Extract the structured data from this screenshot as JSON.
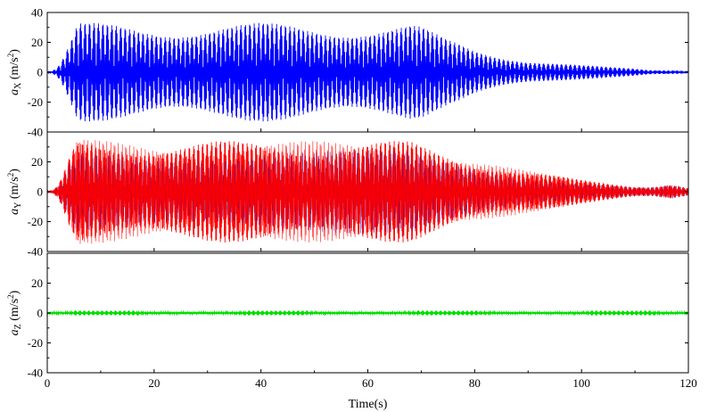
{
  "chart_data": {
    "type": "line",
    "layout": "stacked-panels",
    "shared_x": {
      "label": "Time(s)",
      "range": [
        0,
        120
      ],
      "ticks": [
        0,
        20,
        40,
        60,
        80,
        100,
        120
      ]
    },
    "panels": [
      {
        "id": "ax",
        "ylabel_symbol": "a",
        "ylabel_sub": "X",
        "ylabel_unit": " (m/s",
        "ylabel_exp": "2",
        "ylabel_close": ")",
        "ylim": [
          -40,
          40
        ],
        "yticks": [
          -40,
          -20,
          0,
          20,
          40
        ],
        "color": "#0000ff",
        "envelope": {
          "t": [
            0,
            1,
            2,
            3,
            4,
            5,
            5.5,
            6,
            20,
            40,
            60,
            68,
            70,
            72,
            75,
            77,
            80,
            85,
            90,
            95,
            100,
            105,
            110,
            113,
            115,
            118,
            120
          ],
          "amp": [
            0.5,
            1,
            4,
            10,
            18,
            26,
            31,
            33,
            33,
            33,
            33,
            33,
            31,
            27,
            22,
            20,
            16,
            12,
            9,
            7,
            5,
            3.5,
            2.5,
            1.5,
            1.5,
            1.5,
            1
          ]
        }
      },
      {
        "id": "ay",
        "ylabel_symbol": "a",
        "ylabel_sub": "Y",
        "ylabel_unit": " (m/s",
        "ylabel_exp": "2",
        "ylabel_close": ")",
        "ylim": [
          -40,
          40
        ],
        "yticks": [
          -40,
          -20,
          0,
          20,
          40
        ],
        "color": "#ff0000",
        "inner_color": "#0000cc",
        "envelope": {
          "t": [
            0,
            1,
            2,
            3,
            4,
            5,
            5.5,
            6,
            20,
            40,
            60,
            68,
            70,
            75,
            80,
            85,
            90,
            95,
            100,
            105,
            110,
            113,
            115,
            116.5,
            118,
            120
          ],
          "amp": [
            0.5,
            1,
            4,
            12,
            22,
            30,
            34,
            35,
            34,
            34,
            34,
            34,
            32,
            27,
            22,
            18,
            14,
            11,
            8,
            6,
            4,
            4,
            5,
            6,
            5,
            3
          ]
        }
      },
      {
        "id": "az",
        "ylabel_symbol": "a",
        "ylabel_sub": "Z",
        "ylabel_unit": " (m/s",
        "ylabel_exp": "2",
        "ylabel_close": ")",
        "ylim": [
          -40,
          40
        ],
        "yticks": [
          -40,
          -20,
          0,
          20,
          40
        ],
        "color": "#00dd00",
        "envelope": {
          "t": [
            0,
            120
          ],
          "amp": [
            0.6,
            0.6
          ]
        }
      }
    ]
  }
}
